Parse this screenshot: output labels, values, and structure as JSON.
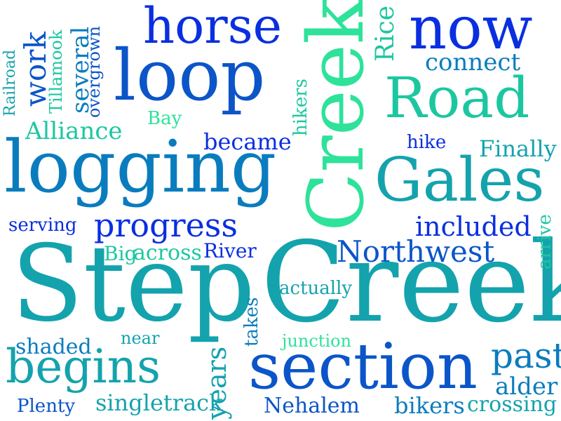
{
  "colors": {
    "background": "#ffffff",
    "palette": [
      "#0a2fe0",
      "#0b55c8",
      "#0a7cbe",
      "#14a3ad",
      "#1cc7a0",
      "#2ee29a"
    ]
  },
  "words": {
    "horse": "horse",
    "now": "now",
    "loop": "loop",
    "creek_vertical": "Creek",
    "rice": "Rice",
    "connect": "connect",
    "road": "Road",
    "work": "work",
    "tillamook": "Tillamook",
    "several": "several",
    "overgrown": "overgrown",
    "railroad": "Railroad",
    "alliance": "Alliance",
    "bay": "Bay",
    "became": "became",
    "hikers": "hikers",
    "hike": "hike",
    "finally": "Finally",
    "logging": "logging",
    "gales": "Gales",
    "serving": "serving",
    "progress": "progress",
    "included": "included",
    "big": "Big",
    "across": "across",
    "river": "River",
    "northwest": "Northwest",
    "arrive": "arrive",
    "step": "Step",
    "creek": "Creek",
    "actually": "actually",
    "takes": "takes",
    "near": "near",
    "junction": "junction",
    "shaded": "shaded",
    "years": "years",
    "begins": "begins",
    "section": "section",
    "past": "past",
    "alder": "alder",
    "plenty": "Plenty",
    "singletrack": "singletrack",
    "nehalem": "Nehalem",
    "bikers": "bikers",
    "crossing": "crossing"
  }
}
